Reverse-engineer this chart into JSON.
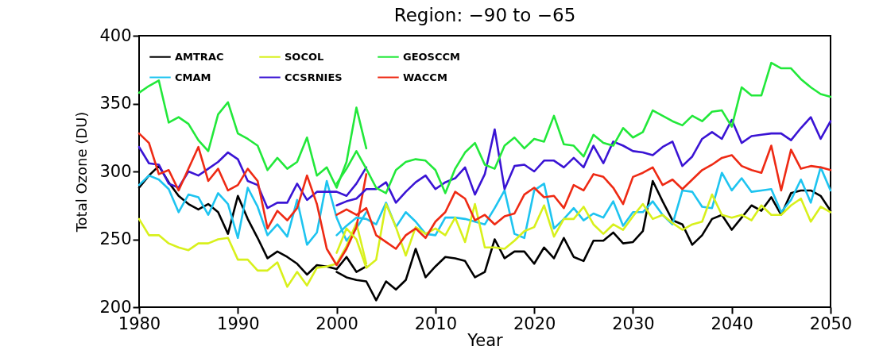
{
  "chart_data": {
    "type": "line",
    "title": "Region: −90 to −65",
    "xlabel": "Year",
    "ylabel": "Total Ozone (DU)",
    "xlim": [
      1980,
      2050
    ],
    "xticks": [
      1980,
      1990,
      2000,
      2010,
      2020,
      2030,
      2040,
      2050
    ],
    "ylim": [
      200,
      400
    ],
    "yticks": [
      200,
      250,
      300,
      350,
      400
    ],
    "grid": false,
    "legend": "top left",
    "line_style": "solid",
    "series": [
      {
        "name": "AMTRAC",
        "color": "#000000",
        "x": [
          1980,
          1981,
          1982,
          1983,
          1984,
          1985,
          1986,
          1987,
          1988,
          1989,
          1990,
          1991,
          1992,
          1993,
          1994,
          1995,
          1996,
          1997,
          1998,
          1999,
          2000,
          2001,
          2002,
          2003
        ],
        "values": [
          288,
          297,
          304,
          292,
          282,
          276,
          272,
          276,
          270,
          254,
          282,
          265,
          251,
          236,
          241,
          237,
          232,
          224,
          231,
          230,
          228,
          237,
          226,
          230
        ]
      },
      {
        "name": "CMAM",
        "color": "#1ec4f0",
        "x": [
          1980,
          1981,
          1982,
          1983,
          1984,
          1985,
          1986,
          1987,
          1988,
          1989,
          1990,
          1991,
          1992,
          1993,
          1994,
          1995,
          1996,
          1997,
          1998,
          1999,
          2000,
          2001,
          2002,
          2003
        ],
        "values": [
          290,
          297,
          294,
          287,
          270,
          283,
          281,
          268,
          284,
          276,
          251,
          288,
          274,
          253,
          261,
          252,
          279,
          246,
          255,
          293,
          266,
          249,
          258,
          270
        ]
      },
      {
        "name": "SOCOL",
        "color": "#d8f01c",
        "x": [
          1980,
          1981,
          1982,
          1983,
          1984,
          1985,
          1986,
          1987,
          1988,
          1989,
          1990,
          1991,
          1992,
          1993,
          1994,
          1995,
          1996,
          1997,
          1998,
          1999,
          2000,
          2001,
          2002,
          2003
        ],
        "values": [
          265,
          253,
          253,
          247,
          244,
          242,
          247,
          247,
          250,
          251,
          235,
          235,
          227,
          227,
          233,
          215,
          226,
          216,
          229,
          230,
          232,
          245,
          262,
          232
        ]
      },
      {
        "name": "CCSRNIES",
        "color": "#3a14d4",
        "x": [
          1980,
          1981,
          1982,
          1983,
          1984,
          1985,
          1986,
          1987,
          1988,
          1989,
          1990,
          1991,
          1992,
          1993,
          1994,
          1995,
          1996,
          1997,
          1998,
          1999,
          2000,
          2001,
          2002,
          2003
        ],
        "values": [
          318,
          306,
          305,
          291,
          288,
          300,
          297,
          302,
          307,
          314,
          309,
          293,
          290,
          273,
          277,
          277,
          291,
          279,
          285,
          285,
          285,
          282,
          291,
          303
        ]
      },
      {
        "name": "GEOSCCM",
        "color": "#22e83a",
        "x": [
          1980,
          1981,
          1982,
          1983,
          1984,
          1985,
          1986,
          1987,
          1988,
          1989,
          1990,
          1991,
          1992,
          1993,
          1994,
          1995,
          1996,
          1997,
          1998,
          1999,
          2000,
          2001,
          2002,
          2003
        ],
        "values": [
          358,
          363,
          367,
          336,
          340,
          335,
          323,
          315,
          342,
          351,
          328,
          324,
          319,
          301,
          310,
          302,
          307,
          325,
          297,
          303,
          288,
          307,
          347,
          317
        ]
      },
      {
        "name": "WACCM",
        "color": "#ee2a14",
        "x": [
          1980,
          1981,
          1982,
          1983,
          1984,
          1985,
          1986,
          1987,
          1988,
          1989,
          1990,
          1991,
          1992,
          1993,
          1994,
          1995,
          1996,
          1997,
          1998,
          1999,
          2000,
          2001,
          2002,
          2003
        ],
        "values": [
          328,
          321,
          298,
          301,
          286,
          302,
          318,
          293,
          302,
          286,
          290,
          302,
          293,
          258,
          271,
          264,
          273,
          297,
          276,
          243,
          231,
          243,
          259,
          298
        ]
      },
      {
        "color": "#000000",
        "x": [
          2000,
          2001,
          2002,
          2003,
          2004,
          2005,
          2006,
          2007,
          2008,
          2009,
          2010,
          2011,
          2012,
          2013,
          2014,
          2015,
          2016,
          2017,
          2018,
          2019,
          2020,
          2021,
          2022,
          2023,
          2024,
          2025,
          2026,
          2027,
          2028,
          2029,
          2030,
          2031,
          2032,
          2033,
          2034,
          2035,
          2036,
          2037,
          2038,
          2039,
          2040,
          2041,
          2042,
          2043,
          2044,
          2045,
          2046,
          2047,
          2048,
          2049,
          2050
        ],
        "values": [
          226,
          222,
          220,
          219,
          205,
          219,
          213,
          220,
          243,
          222,
          230,
          237,
          236,
          234,
          222,
          226,
          250,
          236,
          241,
          241,
          232,
          244,
          236,
          251,
          237,
          234,
          249,
          249,
          255,
          247,
          248,
          256,
          293,
          278,
          264,
          261,
          246,
          253,
          265,
          268,
          257,
          266,
          275,
          271,
          281,
          268,
          284,
          286,
          286,
          282,
          271
        ]
      },
      {
        "color": "#1ec4f0",
        "x": [
          2000,
          2001,
          2002,
          2003,
          2004,
          2005,
          2006,
          2007,
          2008,
          2009,
          2010,
          2011,
          2012,
          2013,
          2014,
          2015,
          2016,
          2017,
          2018,
          2019,
          2020,
          2021,
          2022,
          2023,
          2024,
          2025,
          2026,
          2027,
          2028,
          2029,
          2030,
          2031,
          2032,
          2033,
          2034,
          2035,
          2036,
          2037,
          2038,
          2039,
          2040,
          2041,
          2042,
          2043,
          2044,
          2045,
          2046,
          2047,
          2048,
          2049,
          2050
        ],
        "values": [
          253,
          260,
          266,
          265,
          261,
          277,
          259,
          270,
          263,
          254,
          253,
          266,
          266,
          265,
          263,
          261,
          273,
          286,
          254,
          251,
          286,
          291,
          258,
          265,
          273,
          264,
          269,
          266,
          278,
          260,
          270,
          270,
          278,
          268,
          261,
          286,
          285,
          274,
          273,
          299,
          286,
          295,
          285,
          286,
          287,
          270,
          279,
          294,
          277,
          303,
          286
        ]
      },
      {
        "color": "#d8f01c",
        "x": [
          2000,
          2001,
          2002,
          2003,
          2004,
          2005,
          2006,
          2007,
          2008,
          2009,
          2010,
          2011,
          2012,
          2013,
          2014,
          2015,
          2016,
          2017,
          2018,
          2019,
          2020,
          2021,
          2022,
          2023,
          2024,
          2025,
          2026,
          2027,
          2028,
          2029,
          2030,
          2031,
          2032,
          2033,
          2034,
          2035,
          2036,
          2037,
          2038,
          2039,
          2040,
          2041,
          2042,
          2043,
          2044,
          2045,
          2046,
          2047,
          2048,
          2049,
          2050
        ],
        "values": [
          240,
          258,
          250,
          229,
          235,
          276,
          259,
          238,
          259,
          254,
          258,
          253,
          266,
          248,
          276,
          244,
          244,
          243,
          249,
          256,
          259,
          275,
          252,
          265,
          265,
          274,
          261,
          254,
          261,
          257,
          267,
          276,
          265,
          268,
          262,
          257,
          261,
          263,
          283,
          268,
          266,
          268,
          264,
          275,
          268,
          268,
          275,
          280,
          263,
          274,
          270
        ]
      },
      {
        "color": "#3a14d4",
        "x": [
          2000,
          2001,
          2002,
          2003,
          2004,
          2005,
          2006,
          2007,
          2008,
          2009,
          2010,
          2011,
          2012,
          2013,
          2014,
          2015,
          2016,
          2017,
          2018,
          2019,
          2020,
          2021,
          2022,
          2023,
          2024,
          2025,
          2026,
          2027,
          2028,
          2029,
          2030,
          2031,
          2032,
          2033,
          2034,
          2035,
          2036,
          2037,
          2038,
          2039,
          2040,
          2041,
          2042,
          2043,
          2044,
          2045,
          2046,
          2047,
          2048,
          2049,
          2050
        ],
        "values": [
          275,
          278,
          280,
          287,
          287,
          292,
          277,
          285,
          292,
          297,
          287,
          292,
          295,
          303,
          283,
          298,
          331,
          287,
          304,
          305,
          300,
          308,
          308,
          303,
          310,
          303,
          319,
          306,
          322,
          319,
          315,
          314,
          312,
          318,
          322,
          304,
          311,
          324,
          329,
          324,
          338,
          321,
          326,
          327,
          328,
          328,
          323,
          332,
          340,
          324,
          337
        ]
      },
      {
        "color": "#22e83a",
        "x": [
          2000,
          2001,
          2002,
          2003,
          2004,
          2005,
          2006,
          2007,
          2008,
          2009,
          2010,
          2011,
          2012,
          2013,
          2014,
          2015,
          2016,
          2017,
          2018,
          2019,
          2020,
          2021,
          2022,
          2023,
          2024,
          2025,
          2026,
          2027,
          2028,
          2029,
          2030,
          2031,
          2032,
          2033,
          2034,
          2035,
          2036,
          2037,
          2038,
          2039,
          2040,
          2041,
          2042,
          2043,
          2044,
          2045,
          2046,
          2047,
          2048,
          2049,
          2050
        ],
        "values": [
          291,
          302,
          315,
          302,
          288,
          284,
          301,
          307,
          309,
          308,
          301,
          284,
          302,
          314,
          321,
          305,
          302,
          319,
          325,
          317,
          324,
          322,
          341,
          320,
          319,
          311,
          327,
          321,
          319,
          332,
          325,
          329,
          345,
          341,
          337,
          334,
          341,
          337,
          344,
          345,
          333,
          362,
          356,
          356,
          380,
          376,
          376,
          368,
          362,
          357,
          355
        ]
      },
      {
        "color": "#ee2a14",
        "x": [
          2000,
          2001,
          2002,
          2003,
          2004,
          2005,
          2006,
          2007,
          2008,
          2009,
          2010,
          2011,
          2012,
          2013,
          2014,
          2015,
          2016,
          2017,
          2018,
          2019,
          2020,
          2021,
          2022,
          2023,
          2024,
          2025,
          2026,
          2027,
          2028,
          2029,
          2030,
          2031,
          2032,
          2033,
          2034,
          2035,
          2036,
          2037,
          2038,
          2039,
          2040,
          2041,
          2042,
          2043,
          2044,
          2045,
          2046,
          2047,
          2048,
          2049,
          2050
        ],
        "values": [
          268,
          272,
          268,
          273,
          253,
          248,
          243,
          253,
          258,
          251,
          263,
          270,
          285,
          280,
          264,
          268,
          261,
          267,
          269,
          283,
          288,
          281,
          282,
          273,
          290,
          286,
          298,
          296,
          288,
          276,
          296,
          299,
          303,
          290,
          294,
          287,
          294,
          301,
          305,
          310,
          312,
          304,
          301,
          299,
          319,
          286,
          316,
          302,
          304,
          303,
          301
        ]
      }
    ]
  }
}
